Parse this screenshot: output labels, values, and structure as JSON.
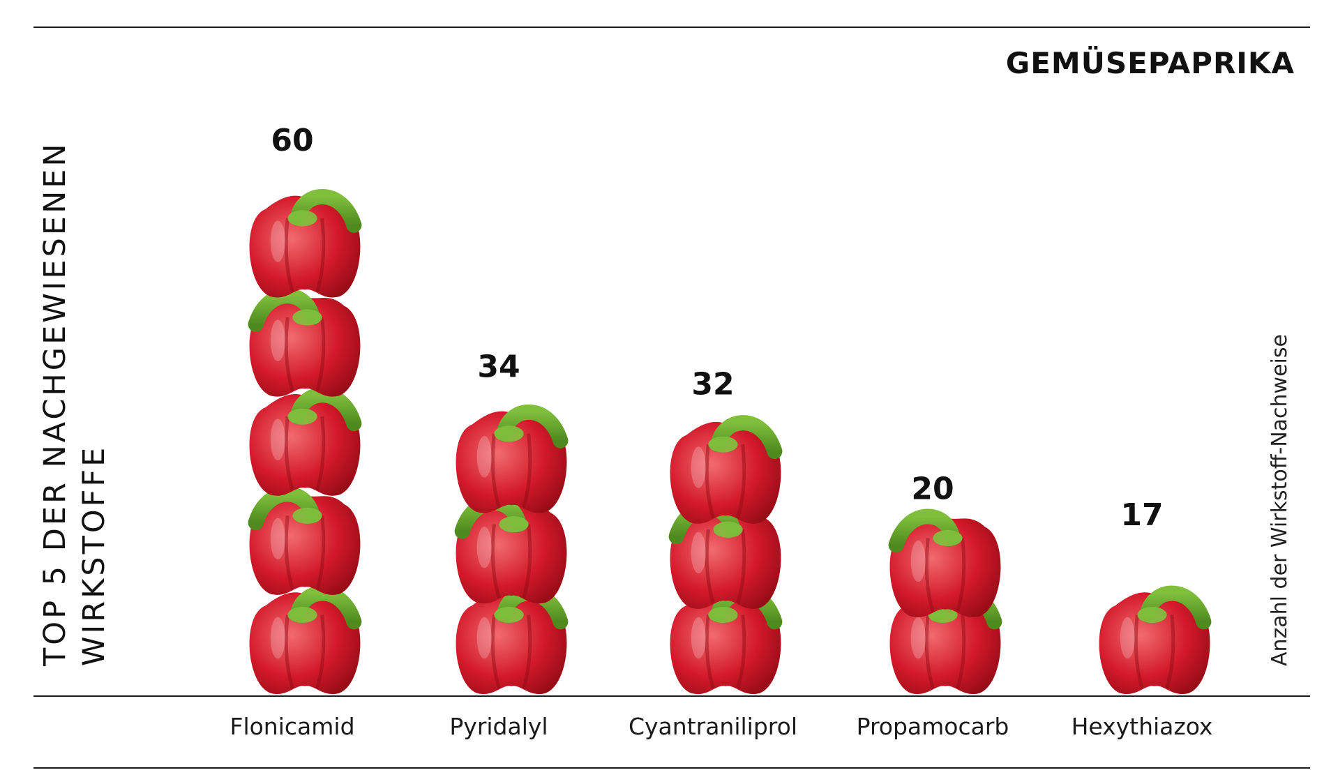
{
  "chart_data": {
    "type": "bar",
    "title": "GEMÜSEPAPRIKA",
    "side_title": [
      "TOP 5 DER NACHGEWIESENEN",
      "WIRKSTOFFE"
    ],
    "ylabel": "Anzahl der Wirkstoff-Nachweise",
    "categories": [
      "Flonicamid",
      "Pyridalyl",
      "Cyantraniliprol",
      "Propamocarb",
      "Hexythiazox"
    ],
    "values": [
      60,
      34,
      32,
      20,
      17
    ],
    "ylim": [
      0,
      60
    ],
    "grid": false,
    "legend": "none",
    "mark": "pepper-icon",
    "colors": {
      "pepper_body": "#d3192a",
      "pepper_dark": "#8e0a14",
      "pepper_highlight": "#f26b6f",
      "stem": "#7fbf3c",
      "stem_dark": "#4f8a1e",
      "text": "#111111",
      "rule": "#1a1a1a"
    }
  }
}
